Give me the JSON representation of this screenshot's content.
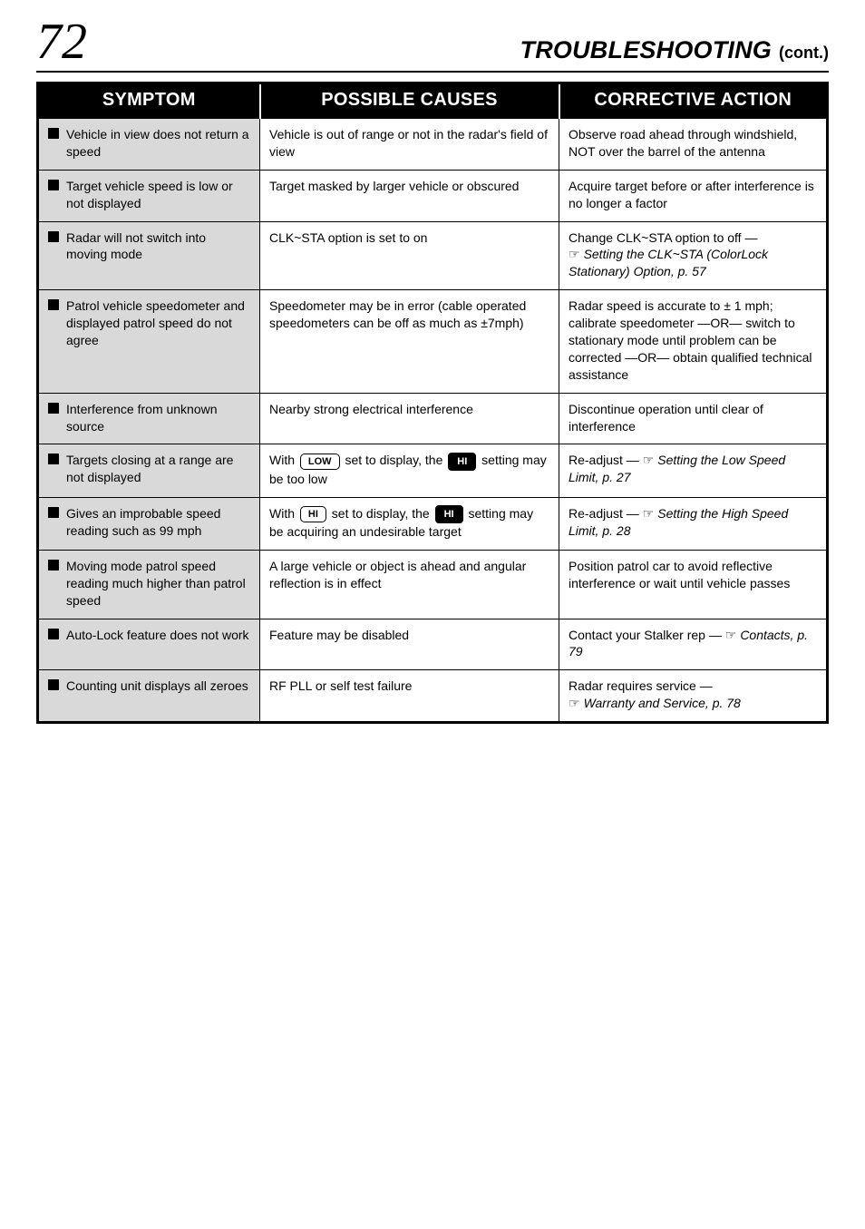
{
  "header": {
    "page_number": "72",
    "title": "TROUBLESHOOTING",
    "cont": "(cont.)"
  },
  "columns": [
    "SYMPTOM",
    "POSSIBLE CAUSES",
    "CORRECTIVE ACTION"
  ],
  "rows": [
    {
      "symptom": "Vehicle in view does not return a speed",
      "cause": "Vehicle is out of range or not in the radar's field of view",
      "action": "Observe road ahead through windshield, NOT over the barrel of the antenna"
    },
    {
      "symptom": "Target vehicle speed is low or not displayed",
      "cause": "Target masked by larger vehicle or obscured",
      "action": "Acquire target before or after interference is no longer a factor"
    },
    {
      "symptom": "Radar will not switch into moving mode",
      "cause": "CLK~STA option is set to on",
      "action_pre": "Change CLK~STA option  to off — ",
      "action_ref": "Setting the CLK~STA (ColorLock Stationary) Option, p. 57"
    },
    {
      "symptom": "Patrol vehicle speedometer and displayed patrol speed do not agree",
      "cause": "Speedometer may be in error (cable operated speedometers can be off as much as ±7mph)",
      "action": "Radar speed is accurate to ± 1 mph; calibrate speedometer —OR— switch to stationary mode until problem can be corrected —OR— obtain qualified technical assistance"
    },
    {
      "symptom": "Interference from unknown source",
      "cause": "Nearby strong electrical interference",
      "action": "Discontinue operation until clear of interference"
    },
    {
      "symptom": "Targets closing at a range are not displayed",
      "key_low": "LOW",
      "key_hi": "HI",
      "cause_pre": "With ",
      "cause_mid": " set to display, the ",
      "cause_post": " setting may be too low",
      "action_pre": "Re-adjust — ",
      "action_ref": "Setting the Low Speed Limit, p. 27"
    },
    {
      "symptom": "Gives an improbable speed reading such as 99 mph",
      "key_hi2": "HI",
      "key_hi1": "HI",
      "cause_pre2": "With ",
      "cause_mid2": " set to display, the ",
      "cause_post2": " setting may be acquiring an undesirable target",
      "action_pre2": "Re-adjust — ",
      "action_ref2": "Setting the High Speed Limit, p. 28"
    },
    {
      "symptom": "Moving mode patrol speed reading much higher than patrol speed",
      "cause": "A large vehicle or object is ahead and angular reflection is in effect",
      "action": "Position patrol car to avoid reflective interference or wait until vehicle passes"
    },
    {
      "symptom": "Auto-Lock feature does not work",
      "cause": "Feature may be disabled",
      "action_pre3": "Contact your Stalker rep — ",
      "action_ref3": "Contacts, p. 79"
    },
    {
      "symptom": "Counting unit displays all zeroes",
      "cause": "RF PLL or self test failure",
      "action_pre4": "Radar requires service — ",
      "action_ref4": "Warranty and Service, p. 78"
    }
  ]
}
